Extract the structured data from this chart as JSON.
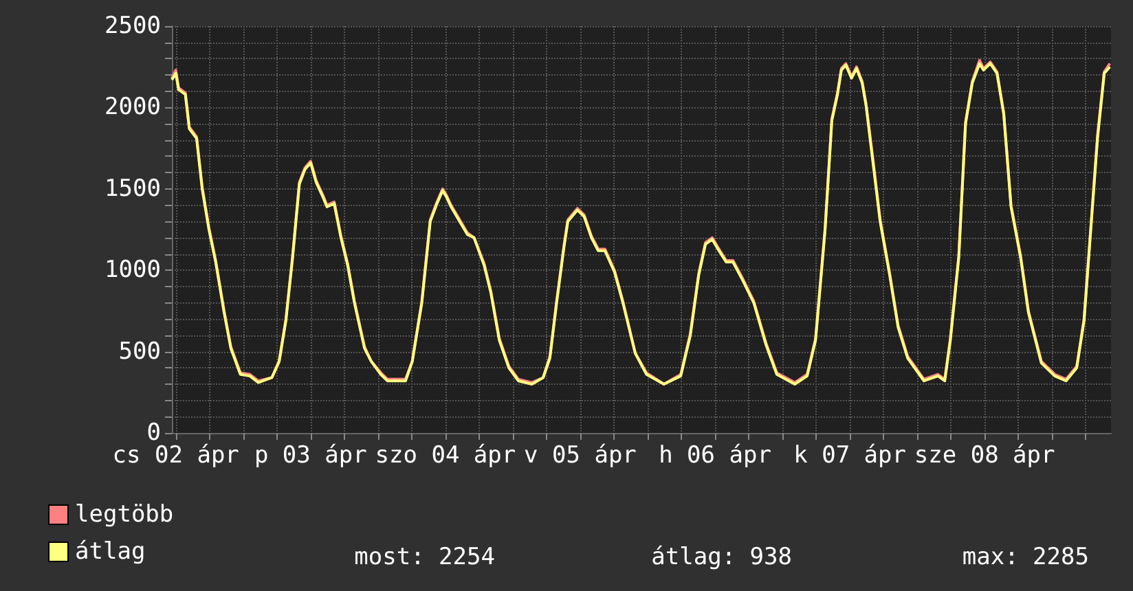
{
  "chart_data": {
    "type": "line",
    "x": [
      "--04-01T23:18",
      "--04-02T00:00",
      "--04-02T00:30",
      "--04-02T01:42",
      "--04-02T02:24",
      "--04-02T03:42",
      "--04-02T04:42",
      "--04-02T05:54",
      "--04-02T07:06",
      "--04-02T08:36",
      "--04-02T09:48",
      "--04-02T11:30",
      "--04-02T13:12",
      "--04-02T14:42",
      "--04-02T17:06",
      "--04-02T18:24",
      "--04-02T19:36",
      "--04-02T20:48",
      "--04-02T22:00",
      "--04-02T23:00",
      "--04-03T00:00",
      "--04-03T01:00",
      "--04-03T02:12",
      "--04-03T02:54",
      "--04-03T04:12",
      "--04-03T05:24",
      "--04-03T06:36",
      "--04-03T07:48",
      "--04-03T09:36",
      "--04-03T10:48",
      "--04-03T12:30",
      "--04-03T13:42",
      "--04-03T16:54",
      "--04-03T18:06",
      "--04-03T19:48",
      "--04-03T21:18",
      "--04-03T22:30",
      "--04-03T23:30",
      "--04-04T00:12",
      "--04-04T01:00",
      "--04-04T02:12",
      "--04-04T03:54",
      "--04-04T05:06",
      "--04-04T06:54",
      "--04-04T08:06",
      "--04-04T09:36",
      "--04-04T11:18",
      "--04-04T13:00",
      "--04-04T15:24",
      "--04-04T17:24",
      "--04-04T18:36",
      "--04-04T19:48",
      "--04-04T21:06",
      "--04-04T21:48",
      "--04-04T23:30",
      "--04-05T00:42",
      "--04-05T02:00",
      "--04-05T03:12",
      "--04-05T04:24",
      "--04-05T06:06",
      "--04-05T07:36",
      "--04-05T09:48",
      "--04-05T11:48",
      "--04-05T14:54",
      "--04-05T17:54",
      "--04-05T19:36",
      "--04-05T21:06",
      "--04-05T22:18",
      "--04-05T23:30",
      "--04-06T00:42",
      "--04-06T02:00",
      "--04-06T03:12",
      "--04-06T04:54",
      "--04-06T06:54",
      "--04-06T09:06",
      "--04-06T11:00",
      "--04-06T14:12",
      "--04-06T16:24",
      "--04-06T17:54",
      "--04-06T19:36",
      "--04-06T20:48",
      "--04-06T21:48",
      "--04-06T22:30",
      "--04-06T23:18",
      "--04-07T00:18",
      "--04-07T01:12",
      "--04-07T02:12",
      "--04-07T02:54",
      "--04-07T04:12",
      "--04-07T05:24",
      "--04-07T07:06",
      "--04-07T08:36",
      "--04-07T10:18",
      "--04-07T13:12",
      "--04-07T15:42",
      "--04-07T16:54",
      "--04-07T17:54",
      "--04-07T19:24",
      "--04-07T20:36",
      "--04-07T21:48",
      "--04-07T23:06",
      "--04-07T23:48",
      "--04-08T01:00",
      "--04-08T02:12",
      "--04-08T03:24",
      "--04-08T04:42",
      "--04-08T06:24",
      "--04-08T07:48",
      "--04-08T10:06",
      "--04-08T12:30",
      "--04-08T14:30",
      "--04-08T16:24",
      "--04-08T17:42",
      "--04-08T18:54",
      "--04-08T20:06",
      "--04-08T21:18",
      "--04-08T22:18"
    ],
    "series": [
      {
        "name": "legtöbb",
        "color": "#ff8080",
        "values": [
          2180,
          2230,
          2120,
          2090,
          1880,
          1820,
          1510,
          1260,
          1060,
          750,
          530,
          370,
          360,
          320,
          340,
          440,
          700,
          1090,
          1540,
          1630,
          1670,
          1550,
          1460,
          1400,
          1420,
          1210,
          1040,
          810,
          530,
          440,
          370,
          330,
          330,
          440,
          810,
          1310,
          1420,
          1500,
          1460,
          1400,
          1330,
          1230,
          1200,
          1040,
          870,
          580,
          410,
          330,
          310,
          340,
          470,
          810,
          1150,
          1310,
          1380,
          1340,
          1210,
          1130,
          1130,
          1000,
          810,
          490,
          370,
          300,
          360,
          610,
          980,
          1170,
          1200,
          1130,
          1060,
          1060,
          950,
          810,
          550,
          370,
          310,
          360,
          580,
          1260,
          1930,
          2090,
          2240,
          2270,
          2190,
          2250,
          2160,
          2020,
          1660,
          1310,
          980,
          660,
          470,
          330,
          360,
          330,
          580,
          1090,
          1910,
          2160,
          2290,
          2240,
          2280,
          2220,
          1970,
          1400,
          1090,
          750,
          440,
          360,
          330,
          410,
          700,
          1260,
          1830,
          2220,
          2270
        ]
      },
      {
        "name": "átlag",
        "color": "#ffff80",
        "values": [
          2170,
          2210,
          2110,
          2080,
          1870,
          1810,
          1500,
          1250,
          1050,
          740,
          520,
          360,
          350,
          310,
          340,
          440,
          690,
          1080,
          1530,
          1620,
          1660,
          1540,
          1450,
          1390,
          1410,
          1200,
          1030,
          800,
          520,
          440,
          360,
          320,
          320,
          440,
          800,
          1300,
          1410,
          1490,
          1450,
          1390,
          1320,
          1220,
          1200,
          1030,
          860,
          570,
          400,
          320,
          300,
          340,
          460,
          800,
          1140,
          1300,
          1370,
          1330,
          1200,
          1120,
          1120,
          990,
          800,
          490,
          360,
          300,
          350,
          600,
          970,
          1160,
          1190,
          1120,
          1050,
          1050,
          940,
          800,
          540,
          360,
          300,
          350,
          570,
          1250,
          1920,
          2080,
          2230,
          2260,
          2180,
          2240,
          2150,
          2010,
          1640,
          1300,
          970,
          650,
          460,
          320,
          350,
          320,
          570,
          1080,
          1900,
          2150,
          2270,
          2230,
          2270,
          2210,
          1960,
          1390,
          1080,
          740,
          430,
          350,
          320,
          400,
          690,
          1250,
          1810,
          2210,
          2250
        ]
      }
    ],
    "xlim": [
      "--04-01T23:18",
      "--04-08T22:30"
    ],
    "xticks": [
      {
        "value": "--04-02T00:00",
        "label": "cs 02 ápr"
      },
      {
        "value": "--04-02T06:00",
        "label": null
      },
      {
        "value": "--04-02T12:00",
        "label": null
      },
      {
        "value": "--04-02T18:00",
        "label": null
      },
      {
        "value": "--04-03T00:00",
        "label": "p 03 ápr"
      },
      {
        "value": "--04-03T06:00",
        "label": null
      },
      {
        "value": "--04-03T12:00",
        "label": null
      },
      {
        "value": "--04-03T18:00",
        "label": null
      },
      {
        "value": "--04-04T00:00",
        "label": "szo 04 ápr"
      },
      {
        "value": "--04-04T06:00",
        "label": null
      },
      {
        "value": "--04-04T12:00",
        "label": null
      },
      {
        "value": "--04-04T18:00",
        "label": null
      },
      {
        "value": "--04-05T00:00",
        "label": "v 05 ápr"
      },
      {
        "value": "--04-05T06:00",
        "label": null
      },
      {
        "value": "--04-05T12:00",
        "label": null
      },
      {
        "value": "--04-05T18:00",
        "label": null
      },
      {
        "value": "--04-06T00:00",
        "label": "h 06 ápr"
      },
      {
        "value": "--04-06T06:00",
        "label": null
      },
      {
        "value": "--04-06T12:00",
        "label": null
      },
      {
        "value": "--04-06T18:00",
        "label": null
      },
      {
        "value": "--04-07T00:00",
        "label": "k 07 ápr"
      },
      {
        "value": "--04-07T06:00",
        "label": null
      },
      {
        "value": "--04-07T12:00",
        "label": null
      },
      {
        "value": "--04-07T18:00",
        "label": null
      },
      {
        "value": "--04-08T00:00",
        "label": "sze 08 ápr"
      },
      {
        "value": "--04-08T06:00",
        "label": null
      },
      {
        "value": "--04-08T12:00",
        "label": null
      },
      {
        "value": "--04-08T18:00",
        "label": null
      }
    ],
    "ylim": [
      0,
      2500
    ],
    "yticks": [
      0,
      {
        "value": 100,
        "label": null
      },
      {
        "value": 200,
        "label": null
      },
      {
        "value": 300,
        "label": null
      },
      {
        "value": 400,
        "label": null
      },
      500,
      {
        "value": 600,
        "label": null
      },
      {
        "value": 700,
        "label": null
      },
      {
        "value": 800,
        "label": null
      },
      {
        "value": 900,
        "label": null
      },
      1000,
      {
        "value": 1100,
        "label": null
      },
      {
        "value": 1200,
        "label": null
      },
      {
        "value": 1300,
        "label": null
      },
      {
        "value": 1400,
        "label": null
      },
      1500,
      {
        "value": 1600,
        "label": null
      },
      {
        "value": 1700,
        "label": null
      },
      {
        "value": 1800,
        "label": null
      },
      {
        "value": 1900,
        "label": null
      },
      2000,
      {
        "value": 2100,
        "label": null
      },
      {
        "value": 2200,
        "label": null
      },
      {
        "value": 2300,
        "label": null
      },
      {
        "value": 2400,
        "label": null
      },
      2500
    ],
    "grid": true,
    "legend": "bottom left",
    "marker": "none",
    "line_style": "solid",
    "annotations": [
      "most: 2254",
      "átlag: 938",
      "max: 2285"
    ]
  }
}
